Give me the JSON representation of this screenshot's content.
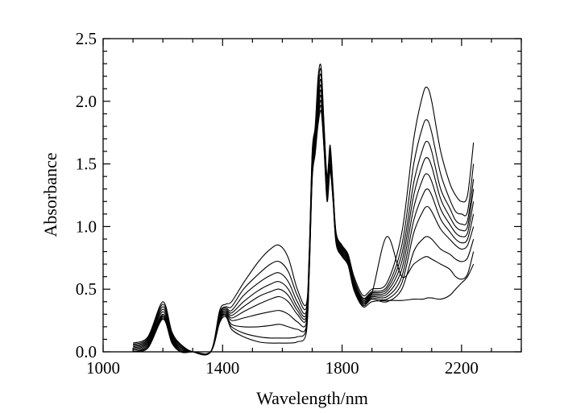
{
  "chart_data": {
    "type": "line",
    "title": "",
    "xlabel": "Wavelength/nm",
    "ylabel": "Absorbance",
    "xlim": [
      1000,
      2400
    ],
    "ylim": [
      0.0,
      2.5
    ],
    "x_ticks": [
      1000,
      1400,
      1800,
      2200
    ],
    "x_tick_labels": [
      "1000",
      "1400",
      "1800",
      "2200"
    ],
    "y_ticks": [
      0.0,
      0.5,
      1.0,
      1.5,
      2.0,
      2.5
    ],
    "y_tick_labels": [
      "0.0",
      "0.5",
      "1.0",
      "1.5",
      "2.0",
      "2.5"
    ],
    "grid": false,
    "legend": "none",
    "line_color": "#000000",
    "x": [
      1100,
      1150,
      1200,
      1230,
      1260,
      1300,
      1360,
      1390,
      1410,
      1430,
      1470,
      1520,
      1560,
      1590,
      1620,
      1650,
      1680,
      1690,
      1700,
      1710,
      1720,
      1730,
      1740,
      1750,
      1760,
      1770,
      1780,
      1800,
      1820,
      1840,
      1870,
      1900,
      1950,
      2000,
      2040,
      2070,
      2085,
      2100,
      2130,
      2160,
      2180,
      2200,
      2220,
      2240
    ],
    "series": [
      {
        "values": [
          0.07,
          0.12,
          0.4,
          0.16,
          0.06,
          0.0,
          0.0,
          0.33,
          0.38,
          0.4,
          0.55,
          0.72,
          0.82,
          0.85,
          0.75,
          0.5,
          0.38,
          0.8,
          1.6,
          1.8,
          2.2,
          2.27,
          1.8,
          1.4,
          1.65,
          1.3,
          0.95,
          0.85,
          0.78,
          0.6,
          0.45,
          0.5,
          0.55,
          0.95,
          1.7,
          2.05,
          2.11,
          2.0,
          1.6,
          1.35,
          1.25,
          1.2,
          1.25,
          1.67
        ]
      },
      {
        "values": [
          0.06,
          0.11,
          0.38,
          0.15,
          0.05,
          0.0,
          0.0,
          0.31,
          0.36,
          0.36,
          0.5,
          0.62,
          0.7,
          0.72,
          0.64,
          0.45,
          0.35,
          0.78,
          1.58,
          1.78,
          2.15,
          2.24,
          1.78,
          1.38,
          1.62,
          1.28,
          0.94,
          0.84,
          0.77,
          0.58,
          0.43,
          0.48,
          0.52,
          0.85,
          1.5,
          1.8,
          1.85,
          1.75,
          1.42,
          1.22,
          1.12,
          1.1,
          1.12,
          1.5
        ]
      },
      {
        "values": [
          0.05,
          0.1,
          0.36,
          0.14,
          0.04,
          0.0,
          0.0,
          0.3,
          0.35,
          0.33,
          0.45,
          0.55,
          0.61,
          0.63,
          0.56,
          0.4,
          0.32,
          0.76,
          1.55,
          1.75,
          2.1,
          2.2,
          1.75,
          1.35,
          1.6,
          1.27,
          0.93,
          0.83,
          0.76,
          0.56,
          0.42,
          0.47,
          0.5,
          0.78,
          1.35,
          1.62,
          1.68,
          1.6,
          1.3,
          1.15,
          1.05,
          1.02,
          1.05,
          1.38
        ]
      },
      {
        "values": [
          0.04,
          0.09,
          0.34,
          0.13,
          0.03,
          0.0,
          0.0,
          0.29,
          0.34,
          0.31,
          0.4,
          0.49,
          0.54,
          0.56,
          0.5,
          0.36,
          0.3,
          0.74,
          1.53,
          1.73,
          2.05,
          2.16,
          1.72,
          1.32,
          1.58,
          1.25,
          0.92,
          0.82,
          0.75,
          0.55,
          0.41,
          0.46,
          0.48,
          0.72,
          1.25,
          1.5,
          1.55,
          1.48,
          1.22,
          1.08,
          1.0,
          0.97,
          1.0,
          1.3
        ]
      },
      {
        "values": [
          0.03,
          0.08,
          0.32,
          0.12,
          0.02,
          0.0,
          0.0,
          0.28,
          0.33,
          0.29,
          0.36,
          0.44,
          0.48,
          0.5,
          0.45,
          0.33,
          0.28,
          0.72,
          1.5,
          1.7,
          2.0,
          2.12,
          1.7,
          1.3,
          1.55,
          1.24,
          0.91,
          0.81,
          0.74,
          0.54,
          0.4,
          0.45,
          0.46,
          0.66,
          1.15,
          1.38,
          1.42,
          1.36,
          1.14,
          1.02,
          0.95,
          0.92,
          0.95,
          1.2
        ]
      },
      {
        "values": [
          0.02,
          0.07,
          0.3,
          0.11,
          0.01,
          0.0,
          0.0,
          0.27,
          0.32,
          0.27,
          0.32,
          0.38,
          0.42,
          0.44,
          0.4,
          0.3,
          0.26,
          0.7,
          1.48,
          1.68,
          1.96,
          2.08,
          1.68,
          1.28,
          1.53,
          1.23,
          0.9,
          0.8,
          0.73,
          0.53,
          0.39,
          0.44,
          0.44,
          0.6,
          1.05,
          1.25,
          1.3,
          1.25,
          1.06,
          0.96,
          0.9,
          0.87,
          0.9,
          1.1
        ]
      },
      {
        "values": [
          0.01,
          0.06,
          0.29,
          0.1,
          0.0,
          0.0,
          0.0,
          0.26,
          0.31,
          0.25,
          0.27,
          0.3,
          0.32,
          0.33,
          0.3,
          0.24,
          0.23,
          0.68,
          1.45,
          1.65,
          1.92,
          2.04,
          1.66,
          1.26,
          1.5,
          1.22,
          0.89,
          0.79,
          0.72,
          0.52,
          0.38,
          0.43,
          0.42,
          0.55,
          0.95,
          1.12,
          1.16,
          1.12,
          0.98,
          0.9,
          0.85,
          0.82,
          0.85,
          1.0
        ]
      },
      {
        "values": [
          0.0,
          0.05,
          0.28,
          0.09,
          0.0,
          0.0,
          0.0,
          0.25,
          0.3,
          0.22,
          0.2,
          0.2,
          0.21,
          0.22,
          0.2,
          0.18,
          0.2,
          0.66,
          1.42,
          1.62,
          1.88,
          2.0,
          1.64,
          1.24,
          1.48,
          1.21,
          0.88,
          0.78,
          0.71,
          0.51,
          0.37,
          0.42,
          0.4,
          0.5,
          0.8,
          0.9,
          0.92,
          0.9,
          0.82,
          0.78,
          0.74,
          0.72,
          0.75,
          0.9
        ]
      },
      {
        "values": [
          0.0,
          0.04,
          0.27,
          0.08,
          0.0,
          0.0,
          0.0,
          0.24,
          0.29,
          0.18,
          0.12,
          0.08,
          0.07,
          0.07,
          0.07,
          0.08,
          0.15,
          0.64,
          1.4,
          1.6,
          1.85,
          1.96,
          1.62,
          1.22,
          1.46,
          1.2,
          0.87,
          0.77,
          0.7,
          0.5,
          0.4,
          0.47,
          0.92,
          0.6,
          0.7,
          0.75,
          0.76,
          0.74,
          0.7,
          0.66,
          0.6,
          0.58,
          0.62,
          0.8
        ]
      },
      {
        "values": [
          0.0,
          0.03,
          0.26,
          0.07,
          0.0,
          0.0,
          0.0,
          0.23,
          0.28,
          0.2,
          0.15,
          0.12,
          0.11,
          0.11,
          0.11,
          0.12,
          0.18,
          0.62,
          1.38,
          1.58,
          1.82,
          1.92,
          1.6,
          1.2,
          1.44,
          1.19,
          0.86,
          0.76,
          0.69,
          0.49,
          0.36,
          0.4,
          0.41,
          0.41,
          0.42,
          0.42,
          0.43,
          0.43,
          0.42,
          0.45,
          0.5,
          0.55,
          0.6,
          0.7
        ]
      }
    ]
  }
}
